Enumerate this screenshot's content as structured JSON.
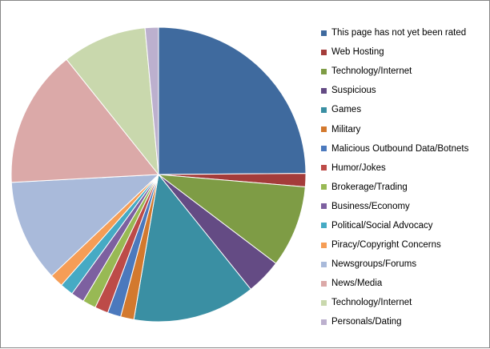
{
  "chart_data": {
    "type": "pie",
    "title": "",
    "legend_position": "right",
    "slices": [
      {
        "label": "This page has not yet been rated",
        "value": 25.5,
        "color": "#3F6A9E"
      },
      {
        "label": "Web Hosting",
        "value": 1.5,
        "color": "#A43C3A"
      },
      {
        "label": "Technology/Internet",
        "value": 9.2,
        "color": "#7E9C45"
      },
      {
        "label": "Suspicious",
        "value": 4.0,
        "color": "#644B84"
      },
      {
        "label": "Games",
        "value": 13.8,
        "color": "#3A8FA3"
      },
      {
        "label": "Military",
        "value": 1.5,
        "color": "#D3792E"
      },
      {
        "label": "Malicious Outbound Data/Botnets",
        "value": 1.5,
        "color": "#4B79BD"
      },
      {
        "label": "Humor/Jokes",
        "value": 1.5,
        "color": "#BD4B48"
      },
      {
        "label": "Brokerage/Trading",
        "value": 1.5,
        "color": "#98B954"
      },
      {
        "label": "Business/Economy",
        "value": 1.5,
        "color": "#7D60A0"
      },
      {
        "label": "Political/Social Advocacy",
        "value": 1.5,
        "color": "#46AAC4"
      },
      {
        "label": "Piracy/Copyright Concerns",
        "value": 1.5,
        "color": "#F59D56"
      },
      {
        "label": "Newsgroups/Forums",
        "value": 11.5,
        "color": "#A9BADA"
      },
      {
        "label": "News/Media",
        "value": 15.5,
        "color": "#DBA9A8"
      },
      {
        "label": "Technology/Internet",
        "value": 9.5,
        "color": "#C9D8AD"
      },
      {
        "label": "Personals/Dating",
        "value": 1.5,
        "color": "#BCB0CE"
      }
    ]
  }
}
